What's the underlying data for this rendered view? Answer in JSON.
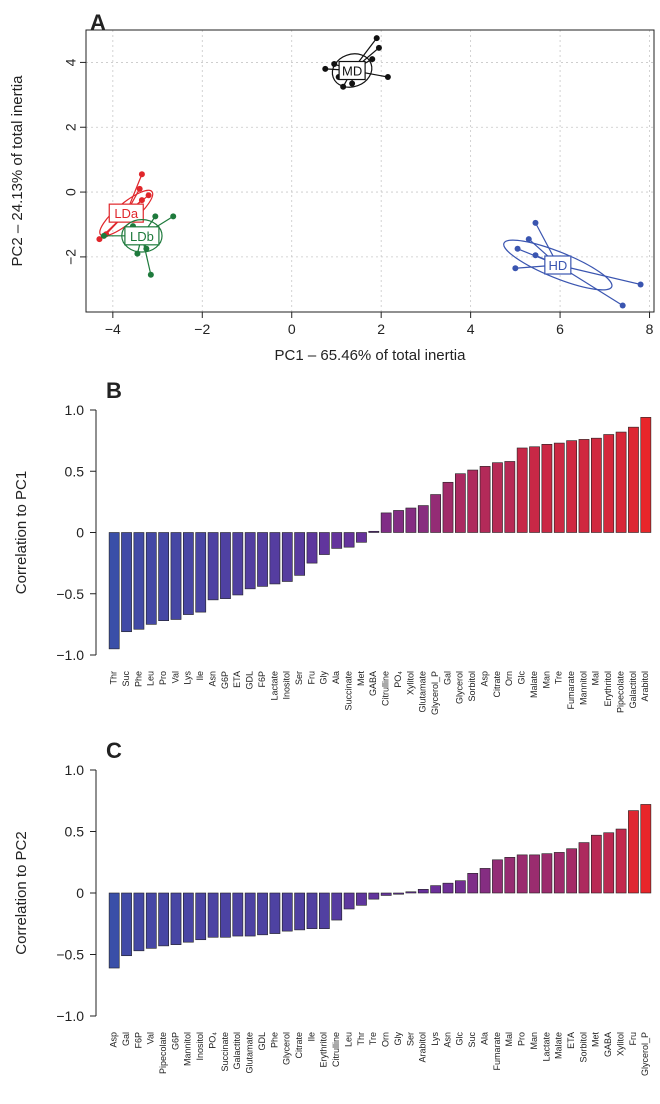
{
  "chart_data": [
    {
      "panel": "A",
      "type": "scatter",
      "xlabel": "PC1 – 65.46% of total inertia",
      "ylabel": "PC2 – 24.13% of total inertia",
      "xlim": [
        -4.6,
        8.1
      ],
      "ylim": [
        -3.7,
        5.0
      ],
      "xticks": [
        -4,
        -2,
        0,
        2,
        4,
        6,
        8
      ],
      "yticks": [
        -2,
        0,
        2,
        4
      ],
      "grid": true,
      "groups": [
        {
          "name": "MD",
          "color": "#111111",
          "center": [
            1.35,
            3.75
          ],
          "ellipse": {
            "rx": 0.45,
            "ry": 0.5,
            "angle": 20
          },
          "points": [
            [
              0.75,
              3.8
            ],
            [
              0.95,
              3.95
            ],
            [
              1.05,
              3.55
            ],
            [
              1.15,
              3.25
            ],
            [
              1.35,
              3.35
            ],
            [
              1.8,
              4.1
            ],
            [
              1.95,
              4.45
            ],
            [
              2.15,
              3.55
            ],
            [
              1.9,
              4.75
            ]
          ]
        },
        {
          "name": "LDa",
          "color": "#e0262b",
          "center": [
            -3.7,
            -0.65
          ],
          "ellipse": {
            "rx": 0.75,
            "ry": 0.3,
            "angle": 40
          },
          "points": [
            [
              -4.3,
              -1.45
            ],
            [
              -4.15,
              -1.3
            ],
            [
              -3.95,
              -0.85
            ],
            [
              -3.6,
              -0.6
            ],
            [
              -3.4,
              0.1
            ],
            [
              -3.35,
              0.55
            ],
            [
              -3.2,
              -0.1
            ],
            [
              -3.35,
              -0.25
            ]
          ]
        },
        {
          "name": "LDb",
          "color": "#1e7a3c",
          "center": [
            -3.35,
            -1.35
          ],
          "ellipse": {
            "rx": 0.45,
            "ry": 0.5,
            "angle": 0
          },
          "points": [
            [
              -4.2,
              -1.35
            ],
            [
              -3.45,
              -1.9
            ],
            [
              -3.25,
              -1.75
            ],
            [
              -3.05,
              -0.75
            ],
            [
              -2.65,
              -0.75
            ],
            [
              -3.15,
              -2.55
            ],
            [
              -3.55,
              -1.05
            ]
          ]
        },
        {
          "name": "HD",
          "color": "#3a55b0",
          "center": [
            5.95,
            -2.25
          ],
          "ellipse": {
            "rx": 1.3,
            "ry": 0.4,
            "angle": -22
          },
          "points": [
            [
              5.0,
              -2.35
            ],
            [
              5.05,
              -1.75
            ],
            [
              5.3,
              -1.45
            ],
            [
              5.45,
              -1.95
            ],
            [
              5.45,
              -0.95
            ],
            [
              7.4,
              -3.5
            ],
            [
              7.8,
              -2.85
            ]
          ]
        }
      ]
    },
    {
      "panel": "B",
      "type": "bar",
      "ylabel": "Correlation to PC1",
      "ylim": [
        -1.0,
        1.0
      ],
      "yticks": [
        -1.0,
        -0.5,
        0,
        0.5,
        1.0
      ],
      "ytick_labels": [
        "−1.0",
        "−0.5",
        "0",
        "0.5",
        "1.0"
      ],
      "color_low": "#3a4fa8",
      "color_mid": "#6a2f9a",
      "color_high": "#e8262a",
      "categories": [
        "Thr",
        "Suc",
        "Phe",
        "Leu",
        "Pro",
        "Val",
        "Lys",
        "Ile",
        "Asn",
        "G6P",
        "ETA",
        "GDL",
        "F6P",
        "Lactate",
        "Inositol",
        "Ser",
        "Fru",
        "Gly",
        "Ala",
        "Succinate",
        "Met",
        "GABA",
        "Citrulline",
        "PO₄",
        "Xylitol",
        "Glutamate",
        "Glycerol_P",
        "Gal",
        "Glycerol",
        "Sorbitol",
        "Asp",
        "Citrate",
        "Orn",
        "Glc",
        "Malate",
        "Man",
        "Tre",
        "Fumarate",
        "Mannitol",
        "Mal",
        "Erythritol",
        "Pipecolate",
        "Galactitol",
        "Arabitol"
      ],
      "values": [
        -0.95,
        -0.81,
        -0.79,
        -0.75,
        -0.72,
        -0.71,
        -0.67,
        -0.65,
        -0.55,
        -0.54,
        -0.51,
        -0.46,
        -0.44,
        -0.42,
        -0.4,
        -0.35,
        -0.25,
        -0.18,
        -0.13,
        -0.12,
        -0.08,
        0.01,
        0.16,
        0.18,
        0.2,
        0.22,
        0.31,
        0.41,
        0.48,
        0.51,
        0.54,
        0.57,
        0.58,
        0.69,
        0.7,
        0.72,
        0.73,
        0.75,
        0.76,
        0.77,
        0.8,
        0.82,
        0.86,
        0.94
      ]
    },
    {
      "panel": "C",
      "type": "bar",
      "ylabel": "Correlation to PC2",
      "ylim": [
        -1.0,
        1.0
      ],
      "yticks": [
        -1.0,
        -0.5,
        0,
        0.5,
        1.0
      ],
      "ytick_labels": [
        "−1.0",
        "−0.5",
        "0",
        "0.5",
        "1.0"
      ],
      "color_low": "#3a4fa8",
      "color_mid": "#6a2f9a",
      "color_high": "#e8262a",
      "categories": [
        "Asp",
        "Gal",
        "F6P",
        "Val",
        "Pipecolate",
        "G6P",
        "Mannitol",
        "Inositol",
        "PO₄",
        "Succinate",
        "Galactitol",
        "Glutamate",
        "GDL",
        "Phe",
        "Glycerol",
        "Citrate",
        "Ile",
        "Erythritol",
        "Citrulline",
        "Leu",
        "Thr",
        "Tre",
        "Orn",
        "Gly",
        "Ser",
        "Arabitol",
        "Lys",
        "Asn",
        "Glc",
        "Suc",
        "Ala",
        "Fumarate",
        "Mal",
        "Pro",
        "Man",
        "Lactate",
        "Malate",
        "ETA",
        "Sorbitol",
        "Met",
        "GABA",
        "Xylitol",
        "Fru",
        "Glycerol_P"
      ],
      "values": [
        -0.61,
        -0.51,
        -0.47,
        -0.45,
        -0.43,
        -0.42,
        -0.4,
        -0.38,
        -0.36,
        -0.36,
        -0.35,
        -0.35,
        -0.34,
        -0.33,
        -0.31,
        -0.3,
        -0.29,
        -0.29,
        -0.22,
        -0.13,
        -0.1,
        -0.05,
        -0.02,
        -0.01,
        0.01,
        0.03,
        0.06,
        0.08,
        0.1,
        0.16,
        0.2,
        0.27,
        0.29,
        0.31,
        0.31,
        0.32,
        0.33,
        0.36,
        0.41,
        0.47,
        0.49,
        0.52,
        0.67,
        0.72
      ]
    }
  ]
}
